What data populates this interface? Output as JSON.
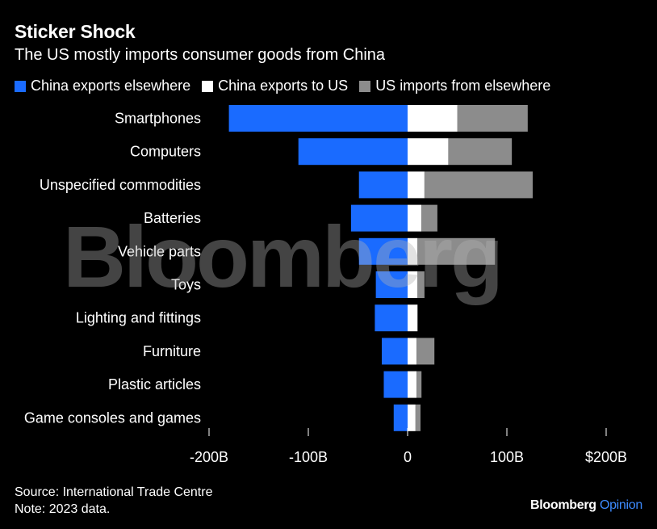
{
  "title": "Sticker Shock",
  "subtitle": "The US mostly imports consumer goods from China",
  "legend": [
    {
      "label": "China exports elsewhere",
      "color": "#1a6bff"
    },
    {
      "label": "China exports to US",
      "color": "#ffffff"
    },
    {
      "label": "US imports from elsewhere",
      "color": "#8c8c8c"
    }
  ],
  "chart_data": {
    "type": "bar",
    "orientation": "horizontal",
    "categories": [
      "Smartphones",
      "Computers",
      "Unspecified commodities",
      "Batteries",
      "Vehicle parts",
      "Toys",
      "Lighting and fittings",
      "Furniture",
      "Plastic articles",
      "Game consoles and games"
    ],
    "series": [
      {
        "name": "China exports elsewhere",
        "color": "#1a6bff",
        "direction": "negative",
        "values": [
          180,
          110,
          49,
          57,
          49,
          32,
          33,
          26,
          24,
          14
        ]
      },
      {
        "name": "China exports to US",
        "color": "#ffffff",
        "values": [
          50,
          41,
          17,
          14,
          10,
          10,
          10,
          9,
          9,
          8
        ]
      },
      {
        "name": "US imports from elsewhere",
        "color": "#8c8c8c",
        "values": [
          71,
          64,
          109,
          16,
          78,
          7,
          0,
          18,
          5,
          5
        ]
      }
    ],
    "xlim": [
      -200,
      200
    ],
    "xticks": [
      {
        "value": -200,
        "label": "-200B"
      },
      {
        "value": -100,
        "label": "-100B"
      },
      {
        "value": 0,
        "label": "0"
      },
      {
        "value": 100,
        "label": "100B"
      },
      {
        "value": 200,
        "label": "$200B"
      }
    ],
    "grid": false,
    "legend_position": "top"
  },
  "footer": {
    "source": "Source: International Trade Centre",
    "note": "Note: 2023 data."
  },
  "brand": {
    "name": "Bloomberg",
    "suffix": "Opinion"
  },
  "watermark": "Bloomberg"
}
